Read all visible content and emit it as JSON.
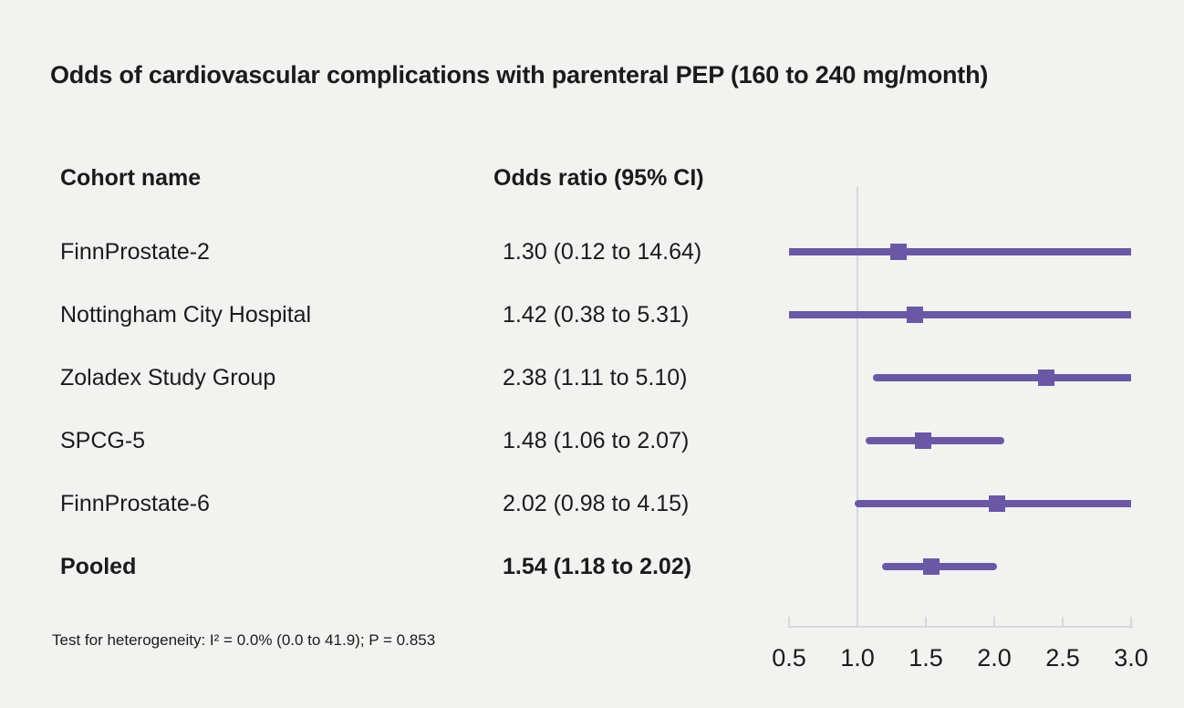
{
  "page": {
    "background": "#F2F2F1",
    "text_color": "#1B1B1B"
  },
  "chart_data": {
    "type": "forest",
    "title": "Odds of cardiovascular complications with parenteral PEP (160 to 240 mg/month)",
    "columns": [
      "Cohort name",
      "Odds ratio (95% CI)"
    ],
    "x_axis": {
      "ticks": [
        0.5,
        1.0,
        1.5,
        2.0,
        2.5,
        3.0
      ],
      "tick_labels": [
        "0.5",
        "1.0",
        "1.5",
        "2.0",
        "2.5",
        "3.0"
      ],
      "range": [
        0.5,
        3.0
      ],
      "reference_line": 1.0,
      "grid": false
    },
    "rows": [
      {
        "cohort": "FinnProstate-2",
        "or_text": "1.30 (0.12 to 14.64)",
        "or": 1.3,
        "ci_low": 0.12,
        "ci_high": 14.64,
        "bold": false
      },
      {
        "cohort": "Nottingham City Hospital",
        "or_text": "1.42 (0.38 to 5.31)",
        "or": 1.42,
        "ci_low": 0.38,
        "ci_high": 5.31,
        "bold": false
      },
      {
        "cohort": "Zoladex Study Group",
        "or_text": "2.38 (1.11 to 5.10)",
        "or": 2.38,
        "ci_low": 1.11,
        "ci_high": 5.1,
        "bold": false
      },
      {
        "cohort": "SPCG-5",
        "or_text": "1.48 (1.06 to 2.07)",
        "or": 1.48,
        "ci_low": 1.06,
        "ci_high": 2.07,
        "bold": false
      },
      {
        "cohort": "FinnProstate-6",
        "or_text": "2.02 (0.98 to 4.15)",
        "or": 2.02,
        "ci_low": 0.98,
        "ci_high": 4.15,
        "bold": false
      },
      {
        "cohort": "Pooled",
        "or_text": "1.54 (1.18 to 2.02)",
        "or": 1.54,
        "ci_low": 1.18,
        "ci_high": 2.02,
        "bold": true
      }
    ],
    "footnote": "Test for heterogeneity: I² = 0.0% (0.0 to 41.9); P = 0.853",
    "legend_position": "none",
    "colors": {
      "marker": "#6B58A4",
      "axis": "#D4D9DF",
      "background": "#F2F2F1",
      "text": "#1B1B1B"
    }
  }
}
